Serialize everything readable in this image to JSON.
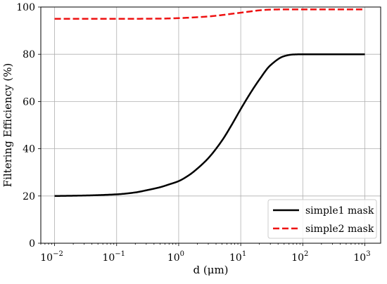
{
  "chart_data": {
    "type": "line",
    "xscale": "log",
    "xlabel": "d (μm)",
    "ylabel": "Filtering Efficiency (%)",
    "xlim": [
      0.006,
      1800
    ],
    "ylim": [
      0,
      100
    ],
    "grid": true,
    "legend_position": "lower-right",
    "x_ticks": [
      {
        "value": 0.01,
        "base": "10",
        "exp": "−2"
      },
      {
        "value": 0.1,
        "base": "10",
        "exp": "−1"
      },
      {
        "value": 1,
        "base": "10",
        "exp": "0"
      },
      {
        "value": 10,
        "base": "10",
        "exp": "1"
      },
      {
        "value": 100,
        "base": "10",
        "exp": "2"
      },
      {
        "value": 1000,
        "base": "10",
        "exp": "3"
      }
    ],
    "y_ticks": [
      "0",
      "20",
      "40",
      "60",
      "80",
      "100"
    ],
    "series": [
      {
        "name": "simple1 mask",
        "color": "#000000",
        "style": "solid",
        "x": [
          0.01,
          0.03,
          0.1,
          0.2,
          0.3,
          0.5,
          0.7,
          1,
          1.5,
          2,
          3,
          5,
          7,
          10,
          15,
          20,
          30,
          50,
          70,
          100,
          1000
        ],
        "y": [
          20,
          20.2,
          20.7,
          21.5,
          22.4,
          23.7,
          24.9,
          26.3,
          29,
          31.6,
          36,
          43.5,
          49.7,
          56.8,
          64.4,
          69.3,
          75.3,
          79.2,
          79.9,
          80,
          80
        ]
      },
      {
        "name": "simple2 mask",
        "color": "#ee1111",
        "style": "dashed",
        "x": [
          0.01,
          0.1,
          0.5,
          1,
          2,
          3,
          5,
          7,
          10,
          15,
          20,
          30,
          50,
          100,
          1000
        ],
        "y": [
          95,
          95,
          95.1,
          95.3,
          95.7,
          96,
          96.6,
          97.1,
          97.6,
          98.2,
          98.6,
          98.9,
          99,
          99,
          99
        ]
      }
    ]
  }
}
